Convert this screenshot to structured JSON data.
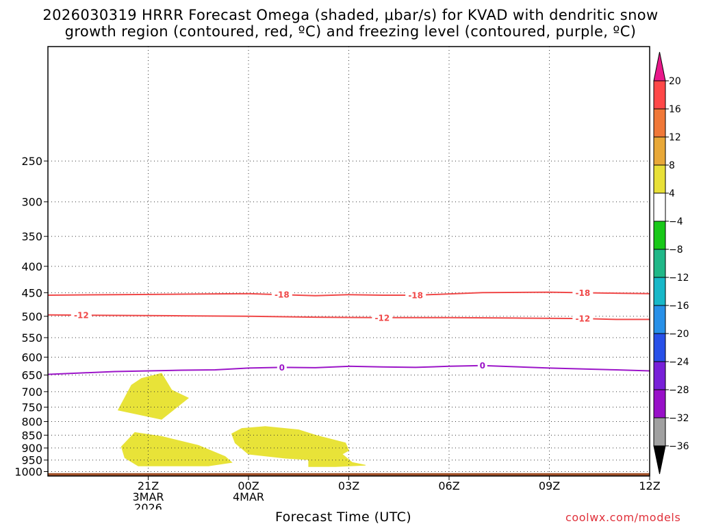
{
  "title_line1": "2026030319 HRRR Forecast Omega (shaded, μbar/s) for KVAD with dendritic snow",
  "title_line2": "growth region (contoured, red, ºC) and freezing level (contoured, purple, ºC)",
  "credit": "coolwx.com/models",
  "chart_data": {
    "type": "time-height cross section",
    "xlabel": "Forecast Time (UTC)",
    "ylabel": "",
    "x_range_hours": [
      -1,
      17
    ],
    "y_axis": {
      "scale": "pressure (hPa), reversed",
      "range": [
        1020,
        150
      ]
    },
    "y_ticks": [
      250,
      300,
      350,
      400,
      450,
      500,
      550,
      600,
      650,
      700,
      750,
      800,
      850,
      900,
      950,
      1000
    ],
    "x_ticks": [
      {
        "hour": 2,
        "label": "21Z",
        "sub1": "3MAR",
        "sub2": "2026"
      },
      {
        "hour": 5,
        "label": "00Z",
        "sub1": "4MAR",
        "sub2": ""
      },
      {
        "hour": 8,
        "label": "03Z",
        "sub1": "",
        "sub2": ""
      },
      {
        "hour": 11,
        "label": "06Z",
        "sub1": "",
        "sub2": ""
      },
      {
        "hour": 14,
        "label": "09Z",
        "sub1": "",
        "sub2": ""
      },
      {
        "hour": 17,
        "label": "12Z",
        "sub1": "",
        "sub2": ""
      }
    ],
    "grid": "dotted",
    "contours": [
      {
        "name": "-18",
        "color": "#f04848",
        "points": [
          [
            -1,
            455
          ],
          [
            1,
            454
          ],
          [
            3,
            453
          ],
          [
            5,
            452
          ],
          [
            6,
            454
          ],
          [
            7,
            456
          ],
          [
            8,
            454
          ],
          [
            9,
            455
          ],
          [
            10,
            455
          ],
          [
            12,
            450
          ],
          [
            14,
            449
          ],
          [
            16,
            451
          ],
          [
            17,
            452
          ]
        ],
        "label_hours": [
          6,
          10,
          15
        ]
      },
      {
        "name": "-12",
        "color": "#f04848",
        "points": [
          [
            -1,
            497
          ],
          [
            1,
            498
          ],
          [
            3,
            499
          ],
          [
            5,
            500
          ],
          [
            7,
            502
          ],
          [
            9,
            503
          ],
          [
            11,
            503
          ],
          [
            13,
            504
          ],
          [
            15,
            505
          ],
          [
            16,
            507
          ],
          [
            17,
            507
          ]
        ],
        "label_hours": [
          0,
          9,
          15
        ]
      },
      {
        "name": "0",
        "color": "#9b14c8",
        "points": [
          [
            -1,
            648
          ],
          [
            1,
            640
          ],
          [
            3,
            636
          ],
          [
            4,
            635
          ],
          [
            5,
            630
          ],
          [
            6,
            628
          ],
          [
            7,
            629
          ],
          [
            8,
            625
          ],
          [
            9,
            627
          ],
          [
            10,
            628
          ],
          [
            11,
            625
          ],
          [
            12,
            623
          ],
          [
            14,
            630
          ],
          [
            16,
            635
          ],
          [
            17,
            638
          ]
        ],
        "label_hours": [
          6,
          12
        ]
      }
    ],
    "shaded_regions": [
      {
        "value_range": [
          4,
          8
        ],
        "color": "#e8e338",
        "points": [
          [
            2.4,
            645
          ],
          [
            2.7,
            695
          ],
          [
            3.2,
            720
          ],
          [
            2.4,
            792
          ],
          [
            1.1,
            760
          ],
          [
            1.5,
            680
          ],
          [
            1.8,
            660
          ]
        ]
      },
      {
        "value_range": [
          4,
          8
        ],
        "color": "#e8e338",
        "points": [
          [
            1.6,
            840
          ],
          [
            2.4,
            855
          ],
          [
            3.5,
            890
          ],
          [
            4.3,
            935
          ],
          [
            4.5,
            960
          ],
          [
            3.8,
            975
          ],
          [
            1.7,
            975
          ],
          [
            1.3,
            940
          ],
          [
            1.2,
            895
          ]
        ]
      },
      {
        "value_range": [
          4,
          8
        ],
        "color": "#e8e338",
        "points": [
          [
            4.8,
            825
          ],
          [
            5.5,
            818
          ],
          [
            6.5,
            830
          ],
          [
            7,
            850
          ],
          [
            7.9,
            880
          ],
          [
            8,
            910
          ],
          [
            7.8,
            925
          ],
          [
            8.1,
            960
          ],
          [
            8.5,
            972
          ],
          [
            7.6,
            978
          ],
          [
            6.8,
            978
          ],
          [
            6.8,
            948
          ],
          [
            6.1,
            942
          ],
          [
            5,
            925
          ],
          [
            4.6,
            880
          ],
          [
            4.5,
            845
          ]
        ]
      }
    ],
    "ground": {
      "color": "#a05028",
      "from_hpa": 1007
    },
    "colorbar": {
      "labels": [
        "20",
        "16",
        "12",
        "8",
        "4",
        "−4",
        "−8",
        "−12",
        "−16",
        "−20",
        "−24",
        "−28",
        "−32",
        "−36"
      ],
      "colors": [
        "#ff4848",
        "#f07838",
        "#e8a838",
        "#e8e038",
        "#ffffff",
        "#18c818",
        "#20b888",
        "#18b8c8",
        "#2890e8",
        "#2850e8",
        "#7820d8",
        "#9810c8",
        "#a0a0a0"
      ],
      "top_arrow_color": "#e8188a",
      "bottom_arrow_color": "#000000"
    }
  }
}
